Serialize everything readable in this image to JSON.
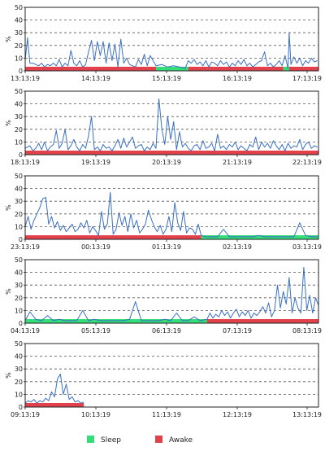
{
  "colors": {
    "line": "#3a6fc4",
    "sleep": "#33dd77",
    "awake": "#e2414c",
    "grid": "#555555",
    "frame": "#222222"
  },
  "legend": {
    "sleep_label": "Sleep",
    "awake_label": "Awake",
    "placement": "bottom-center"
  },
  "chart_data": [
    {
      "type": "line",
      "ylabel": "%",
      "ylim": [
        0,
        50
      ],
      "yticks": [
        0,
        10,
        20,
        30,
        40,
        50
      ],
      "grid": true,
      "xlim_hours": [
        13.22,
        18.22
      ],
      "x_tick_labels": [
        "13:13:19",
        "14:13:19",
        "15:13:19",
        "16:13:19",
        "17:13:19"
      ],
      "state_segments": [
        {
          "state": "Awake",
          "start": 13.22,
          "end": 15.45
        },
        {
          "state": "Sleep",
          "start": 15.45,
          "end": 16.0
        },
        {
          "state": "Awake",
          "start": 16.0,
          "end": 17.62
        },
        {
          "state": "Sleep",
          "start": 17.62,
          "end": 17.72
        },
        {
          "state": "Awake",
          "start": 17.72,
          "end": 18.22
        }
      ],
      "series": [
        {
          "x": [
            13.22,
            13.26,
            13.3,
            13.35,
            13.4,
            13.45,
            13.5,
            13.55,
            13.6,
            13.65,
            13.7,
            13.75,
            13.8,
            13.85,
            13.9,
            13.95,
            14.0,
            14.05,
            14.1,
            14.15,
            14.2,
            14.25,
            14.3,
            14.35,
            14.4,
            14.45,
            14.5,
            14.55,
            14.6,
            14.65,
            14.7,
            14.75,
            14.8,
            14.85,
            14.9,
            14.95,
            15.0,
            15.05,
            15.1,
            15.15,
            15.2,
            15.25,
            15.3,
            15.35,
            15.4,
            15.45,
            15.55,
            15.65,
            15.75,
            15.85,
            15.95,
            16.0,
            16.05,
            16.1,
            16.15,
            16.2,
            16.25,
            16.3,
            16.35,
            16.4,
            16.45,
            16.5,
            16.55,
            16.6,
            16.65,
            16.7,
            16.75,
            16.8,
            16.85,
            16.9,
            16.95,
            17.0,
            17.05,
            17.1,
            17.15,
            17.2,
            17.25,
            17.3,
            17.35,
            17.4,
            17.45,
            17.5,
            17.55,
            17.6,
            17.65,
            17.7,
            17.72,
            17.75,
            17.8,
            17.85,
            17.9,
            17.95,
            18.0,
            18.05,
            18.1,
            18.15,
            18.2
          ],
          "y": [
            8,
            26,
            6,
            6,
            5,
            4,
            6,
            3,
            5,
            4,
            6,
            4,
            9,
            3,
            6,
            4,
            16,
            6,
            4,
            8,
            3,
            5,
            15,
            24,
            8,
            23,
            12,
            23,
            6,
            22,
            8,
            21,
            3,
            25,
            6,
            10,
            5,
            4,
            3,
            9,
            5,
            13,
            4,
            12,
            8,
            4,
            5,
            3,
            4,
            3,
            2,
            8,
            6,
            9,
            5,
            7,
            4,
            8,
            3,
            7,
            6,
            4,
            8,
            5,
            7,
            3,
            6,
            4,
            8,
            5,
            9,
            4,
            6,
            3,
            5,
            7,
            8,
            15,
            4,
            6,
            3,
            5,
            8,
            4,
            12,
            2,
            30,
            5,
            11,
            6,
            10,
            4,
            8,
            6,
            10,
            7,
            8
          ]
        }
      ]
    },
    {
      "type": "line",
      "ylabel": "%",
      "ylim": [
        0,
        50
      ],
      "yticks": [
        0,
        10,
        20,
        30,
        40,
        50
      ],
      "grid": true,
      "xlim_hours": [
        18.22,
        23.22
      ],
      "x_tick_labels": [
        "18:13:19",
        "19:13:19",
        "20:13:19",
        "21:13:19",
        "22:13:19"
      ],
      "state_segments": [
        {
          "state": "Awake",
          "start": 18.22,
          "end": 23.22
        }
      ],
      "series": [
        {
          "x": [
            18.22,
            18.3,
            18.35,
            18.4,
            18.45,
            18.5,
            18.55,
            18.6,
            18.65,
            18.7,
            18.75,
            18.8,
            18.85,
            18.9,
            18.95,
            19.0,
            19.05,
            19.1,
            19.15,
            19.2,
            19.25,
            19.3,
            19.35,
            19.4,
            19.45,
            19.5,
            19.55,
            19.6,
            19.65,
            19.7,
            19.75,
            19.8,
            19.85,
            19.9,
            19.95,
            20.0,
            20.05,
            20.1,
            20.15,
            20.2,
            20.25,
            20.3,
            20.35,
            20.4,
            20.45,
            20.5,
            20.55,
            20.6,
            20.65,
            20.7,
            20.75,
            20.8,
            20.85,
            20.9,
            20.95,
            21.0,
            21.05,
            21.1,
            21.15,
            21.2,
            21.25,
            21.3,
            21.35,
            21.4,
            21.45,
            21.5,
            21.55,
            21.6,
            21.65,
            21.7,
            21.75,
            21.8,
            21.85,
            21.9,
            21.95,
            22.0,
            22.05,
            22.1,
            22.15,
            22.2,
            22.25,
            22.3,
            22.35,
            22.4,
            22.45,
            22.5,
            22.55,
            22.6,
            22.65,
            22.7,
            22.75,
            22.8,
            22.85,
            22.9,
            22.95,
            23.0,
            23.05,
            23.1,
            23.15,
            23.2
          ],
          "y": [
            5,
            7,
            3,
            5,
            9,
            4,
            10,
            3,
            6,
            8,
            19,
            5,
            9,
            20,
            4,
            7,
            12,
            6,
            3,
            8,
            5,
            15,
            30,
            4,
            6,
            3,
            8,
            5,
            6,
            3,
            7,
            12,
            5,
            13,
            6,
            10,
            14,
            5,
            7,
            8,
            3,
            6,
            4,
            9,
            5,
            44,
            20,
            8,
            30,
            12,
            26,
            4,
            18,
            6,
            9,
            5,
            3,
            7,
            8,
            4,
            11,
            5,
            6,
            9,
            3,
            16,
            5,
            7,
            4,
            8,
            6,
            10,
            4,
            7,
            5,
            3,
            8,
            6,
            14,
            4,
            10,
            6,
            9,
            5,
            11,
            7,
            4,
            8,
            3,
            9,
            5,
            7,
            6,
            12,
            4,
            8,
            10,
            5,
            7,
            6
          ]
        }
      ]
    },
    {
      "type": "line",
      "ylabel": "%",
      "ylim": [
        0,
        50
      ],
      "yticks": [
        0,
        10,
        20,
        30,
        40,
        50
      ],
      "grid": true,
      "xlim_hours": [
        23.22,
        28.22
      ],
      "x_tick_labels": [
        "23:13:19",
        "00:13:19",
        "01:13:19",
        "02:13:19",
        "03:13:19"
      ],
      "state_segments": [
        {
          "state": "Awake",
          "start": 23.22,
          "end": 26.22
        },
        {
          "state": "Sleep",
          "start": 26.22,
          "end": 28.22
        }
      ],
      "series": [
        {
          "x": [
            23.22,
            23.27,
            23.32,
            23.37,
            23.42,
            23.47,
            23.52,
            23.57,
            23.62,
            23.67,
            23.72,
            23.77,
            23.82,
            23.87,
            23.92,
            23.97,
            24.02,
            24.07,
            24.12,
            24.17,
            24.22,
            24.27,
            24.32,
            24.37,
            24.42,
            24.47,
            24.52,
            24.57,
            24.62,
            24.67,
            24.72,
            24.77,
            24.82,
            24.87,
            24.92,
            24.97,
            25.02,
            25.07,
            25.12,
            25.17,
            25.22,
            25.27,
            25.32,
            25.37,
            25.42,
            25.47,
            25.52,
            25.57,
            25.62,
            25.67,
            25.72,
            25.77,
            25.82,
            25.87,
            25.92,
            25.97,
            26.02,
            26.07,
            26.12,
            26.17,
            26.22,
            26.3,
            26.4,
            26.5,
            26.6,
            26.7,
            26.8,
            26.9,
            27.0,
            27.1,
            27.2,
            27.3,
            27.4,
            27.5,
            27.6,
            27.7,
            27.8,
            27.9,
            28.0,
            28.1,
            28.2
          ],
          "y": [
            10,
            18,
            8,
            15,
            20,
            25,
            32,
            33,
            12,
            18,
            9,
            14,
            7,
            11,
            6,
            9,
            12,
            6,
            8,
            13,
            9,
            15,
            5,
            10,
            7,
            3,
            22,
            8,
            12,
            37,
            4,
            8,
            21,
            11,
            18,
            6,
            20,
            9,
            15,
            5,
            8,
            12,
            23,
            16,
            10,
            6,
            11,
            4,
            8,
            18,
            6,
            29,
            13,
            7,
            22,
            5,
            9,
            8,
            4,
            12,
            3,
            2,
            2,
            2,
            8,
            2,
            2,
            2,
            2,
            2,
            3,
            2,
            2,
            2,
            2,
            2,
            2,
            13,
            3,
            2,
            2
          ]
        }
      ]
    },
    {
      "type": "line",
      "ylabel": "%",
      "ylim": [
        0,
        50
      ],
      "yticks": [
        0,
        10,
        20,
        30,
        40,
        50
      ],
      "grid": true,
      "xlim_hours": [
        28.22,
        33.22
      ],
      "x_tick_labels": [
        "04:13:19",
        "05:13:19",
        "06:13:19",
        "07:13:19",
        "08:13:19"
      ],
      "state_segments": [
        {
          "state": "Sleep",
          "start": 28.22,
          "end": 31.32
        },
        {
          "state": "Awake",
          "start": 31.32,
          "end": 33.22
        }
      ],
      "series": [
        {
          "x": [
            28.22,
            28.3,
            28.4,
            28.5,
            28.6,
            28.7,
            28.8,
            28.9,
            29.0,
            29.1,
            29.2,
            29.3,
            29.4,
            29.5,
            29.6,
            29.7,
            29.8,
            29.9,
            30.0,
            30.1,
            30.2,
            30.3,
            30.4,
            30.5,
            30.6,
            30.7,
            30.8,
            30.9,
            31.0,
            31.1,
            31.2,
            31.32,
            31.37,
            31.42,
            31.47,
            31.52,
            31.57,
            31.62,
            31.67,
            31.72,
            31.77,
            31.82,
            31.87,
            31.92,
            31.97,
            32.02,
            32.07,
            32.12,
            32.17,
            32.22,
            32.27,
            32.32,
            32.37,
            32.42,
            32.47,
            32.52,
            32.57,
            32.62,
            32.67,
            32.72,
            32.77,
            32.82,
            32.87,
            32.92,
            32.97,
            33.02,
            33.07,
            33.12,
            33.17,
            33.22
          ],
          "y": [
            2,
            9,
            3,
            2,
            6,
            2,
            3,
            2,
            2,
            2,
            10,
            2,
            3,
            2,
            2,
            2,
            2,
            2,
            3,
            17,
            2,
            2,
            2,
            2,
            3,
            2,
            8,
            2,
            2,
            5,
            2,
            3,
            8,
            4,
            7,
            5,
            10,
            6,
            9,
            4,
            8,
            11,
            5,
            9,
            6,
            10,
            4,
            8,
            6,
            9,
            13,
            8,
            16,
            5,
            10,
            30,
            12,
            25,
            15,
            36,
            8,
            20,
            12,
            8,
            44,
            10,
            22,
            8,
            20,
            14
          ]
        }
      ]
    },
    {
      "type": "line",
      "ylabel": "%",
      "ylim": [
        0,
        50
      ],
      "yticks": [
        0,
        10,
        20,
        30,
        40,
        50
      ],
      "grid": true,
      "xlim_hours": [
        33.22,
        38.22
      ],
      "x_tick_labels": [
        "09:13:19",
        "10:13:19",
        "11:13:19",
        "12:13:19",
        "13:13:19"
      ],
      "state_segments": [
        {
          "state": "Awake",
          "start": 33.22,
          "end": 34.22
        }
      ],
      "series": [
        {
          "x": [
            33.22,
            33.27,
            33.32,
            33.37,
            33.42,
            33.47,
            33.52,
            33.57,
            33.62,
            33.67,
            33.72,
            33.77,
            33.82,
            33.87,
            33.92,
            33.97,
            34.02,
            34.07,
            34.12,
            34.17,
            34.22
          ],
          "y": [
            3,
            5,
            4,
            6,
            3,
            5,
            4,
            7,
            5,
            12,
            8,
            22,
            26,
            10,
            18,
            6,
            8,
            4,
            5,
            3,
            4
          ]
        }
      ]
    }
  ]
}
